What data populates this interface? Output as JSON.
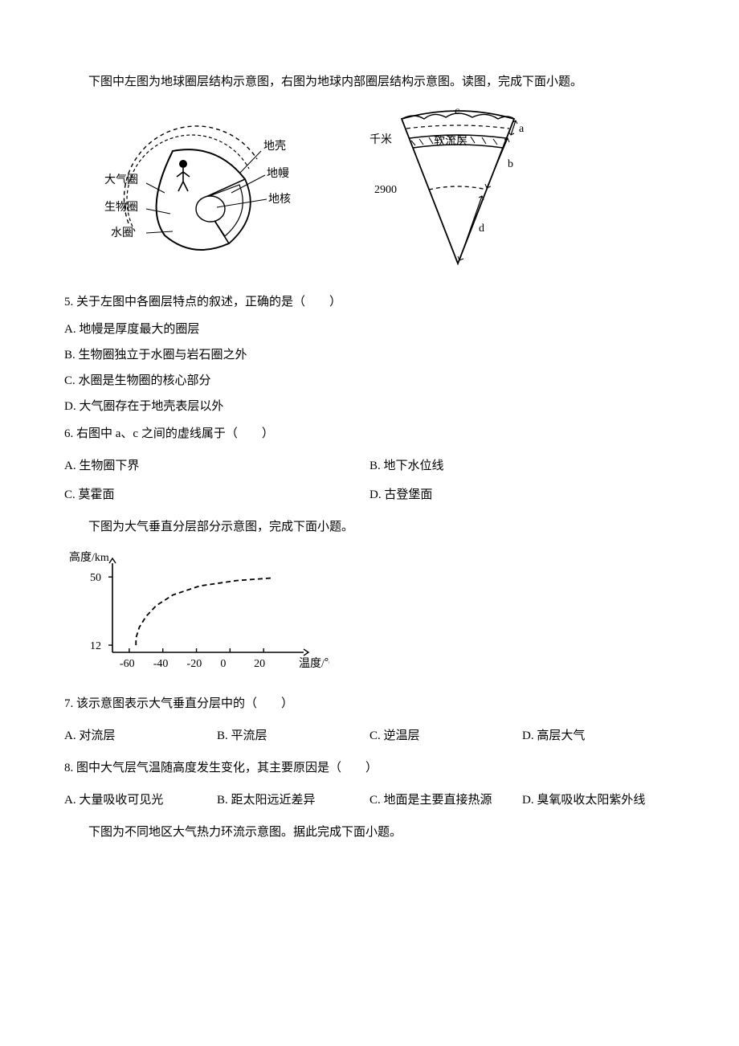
{
  "section1": {
    "intro": "下图中左图为地球圈层结构示意图，右图为地球内部圈层结构示意图。读图，完成下面小题。",
    "left_diagram": {
      "labels": {
        "atmosphere": "大气圈",
        "biosphere": "生物圈",
        "hydrosphere": "水圈",
        "crust": "地壳",
        "mantle": "地幔",
        "core": "地核"
      }
    },
    "right_diagram": {
      "y_label": "千米",
      "asthenosphere": "软流层",
      "depth_2900": "2900",
      "marks": {
        "a": "a",
        "b": "b",
        "c": "c",
        "d": "d"
      }
    },
    "q5": {
      "stem": "5. 关于左图中各圈层特点的叙述，正确的是（　　）",
      "A": "A. 地幔是厚度最大的圈层",
      "B": "B. 生物圈独立于水圈与岩石圈之外",
      "C": "C. 水圈是生物圈的核心部分",
      "D": "D. 大气圈存在于地壳表层以外"
    },
    "q6": {
      "stem": "6. 右图中 a、c 之间的虚线属于（　　）",
      "A": "A. 生物圈下界",
      "B": "B. 地下水位线",
      "C": "C. 莫霍面",
      "D": "D. 古登堡面"
    }
  },
  "section2": {
    "intro": "下图为大气垂直分层部分示意图，完成下面小题。",
    "chart": {
      "type": "line",
      "y_axis_title": "高度/km",
      "x_axis_title": "温度/℃",
      "y_ticks": [
        12,
        50
      ],
      "x_ticks": [
        -60,
        -40,
        -20,
        0,
        20
      ],
      "xlim": [
        -70,
        40
      ],
      "ylim": [
        8,
        55
      ],
      "curve_color": "#000000",
      "curve_dash": "6,4",
      "curve_points": [
        [
          -56,
          12
        ],
        [
          -56,
          16
        ],
        [
          -54,
          22
        ],
        [
          -50,
          28
        ],
        [
          -44,
          34
        ],
        [
          -34,
          40
        ],
        [
          -18,
          45
        ],
        [
          4,
          48
        ],
        [
          26,
          49.5
        ]
      ],
      "axis_color": "#000000",
      "background": "#ffffff",
      "label_fontsize": 14
    },
    "q7": {
      "stem": "7. 该示意图表示大气垂直分层中的（　　）",
      "A": "A. 对流层",
      "B": "B. 平流层",
      "C": "C. 逆温层",
      "D": "D. 高层大气"
    },
    "q8": {
      "stem": "8. 图中大气层气温随高度发生变化，其主要原因是（　　）",
      "A": "A. 大量吸收可见光",
      "B": "B. 距太阳远近差异",
      "C": "C. 地面是主要直接热源",
      "D": "D. 臭氧吸收太阳紫外线"
    }
  },
  "section3": {
    "intro": "下图为不同地区大气热力环流示意图。据此完成下面小题。"
  }
}
